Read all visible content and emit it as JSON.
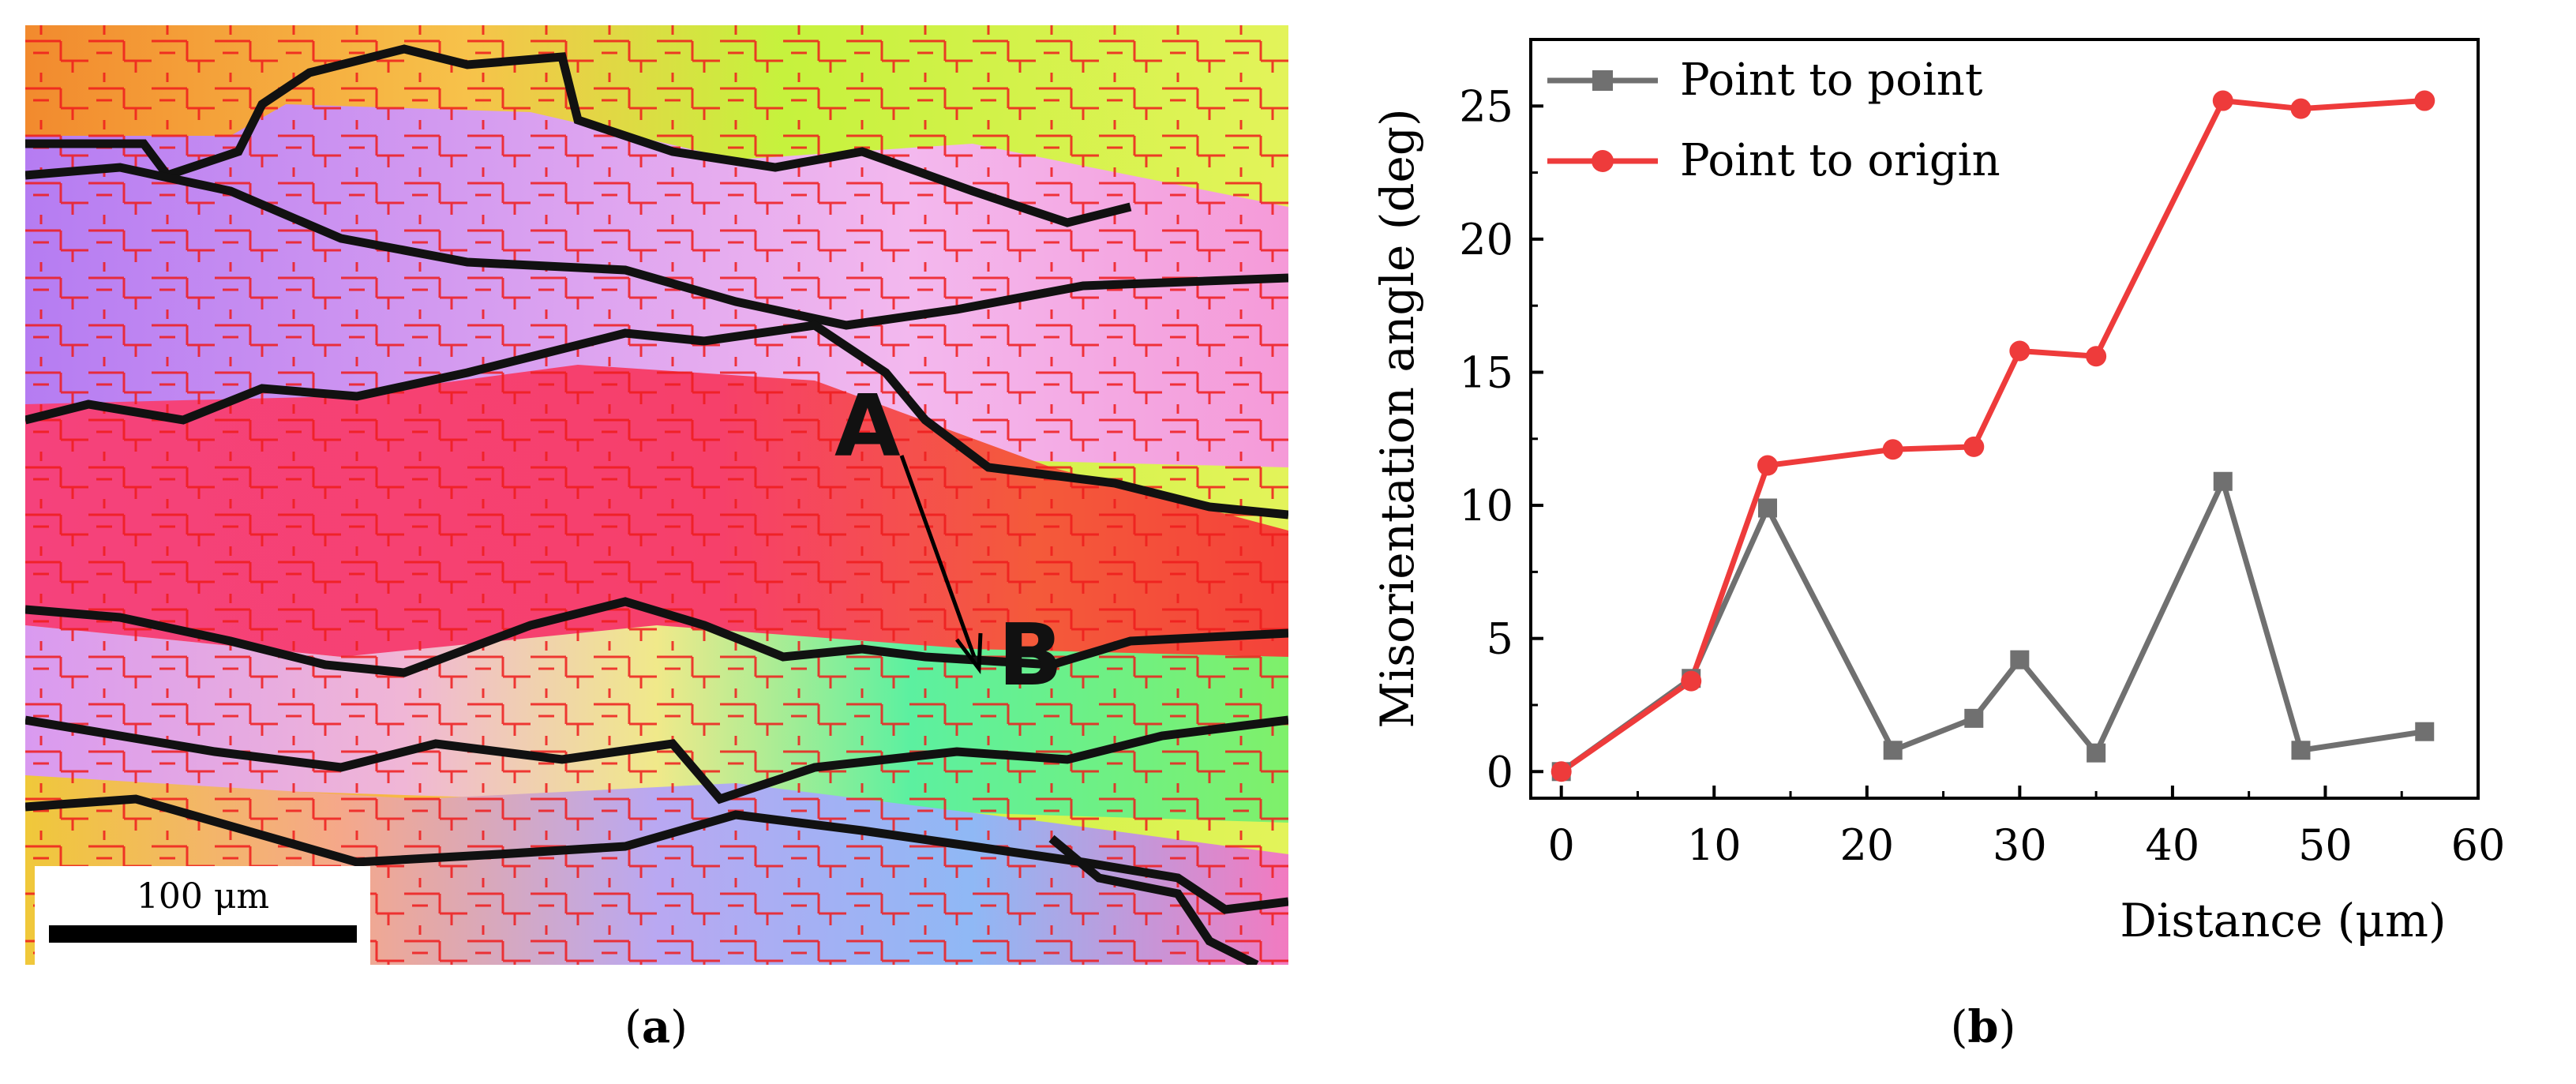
{
  "panel_a": {
    "point_a": "A",
    "point_b": "B",
    "scale_bar": "100 μm"
  },
  "captions": {
    "a_open": "(",
    "a_label": "a",
    "a_close": ")",
    "b_open": "(",
    "b_label": "b",
    "b_close": ")"
  },
  "chart_data": {
    "type": "line",
    "title": "",
    "xlabel": "Distance (μm)",
    "ylabel": "Misorientation angle (deg)",
    "xlim": [
      -2,
      60
    ],
    "ylim": [
      -1,
      27.5
    ],
    "xticks": [
      0,
      10,
      20,
      30,
      40,
      50,
      60
    ],
    "yticks": [
      0,
      5,
      10,
      15,
      20,
      25
    ],
    "grid": false,
    "legend_position": "top-left",
    "series": [
      {
        "name": "Point to point",
        "color": "#707070",
        "marker": "square",
        "x": [
          0,
          8.5,
          13.5,
          21.7,
          27,
          30,
          35,
          43.3,
          48.4,
          56.5
        ],
        "y": [
          0,
          3.5,
          9.9,
          0.8,
          2.0,
          4.2,
          0.7,
          10.9,
          0.8,
          1.5
        ]
      },
      {
        "name": "Point to origin",
        "color": "#ee3b3b",
        "marker": "circle",
        "x": [
          0,
          8.5,
          13.5,
          21.7,
          27,
          30,
          35,
          43.3,
          48.4,
          56.5
        ],
        "y": [
          0,
          3.4,
          11.5,
          12.1,
          12.2,
          15.8,
          15.6,
          25.2,
          24.9,
          25.2
        ]
      }
    ]
  }
}
